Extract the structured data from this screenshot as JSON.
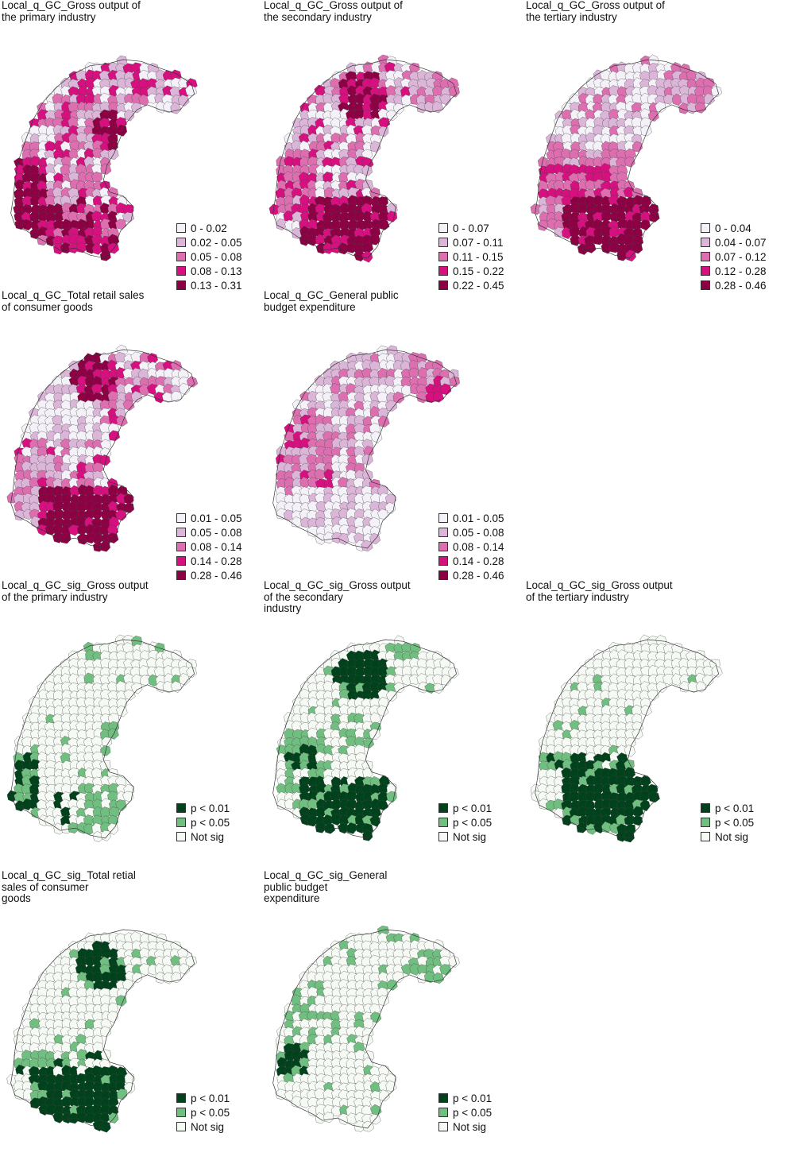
{
  "panels": [
    {
      "id": "primary",
      "title": "Local_q_GC_Gross output of\nthe primary industry",
      "legend_type": "q",
      "legend": [
        "0 - 0.02",
        "0.02 - 0.05",
        "0.05 - 0.08",
        "0.08 - 0.13",
        "0.13 - 0.31"
      ]
    },
    {
      "id": "secondary",
      "title": "Local_q_GC_Gross output of\nthe secondary industry",
      "legend_type": "q",
      "legend": [
        "0 - 0.07",
        "0.07 - 0.11",
        "0.11 - 0.15",
        "0.15 - 0.22",
        "0.22 - 0.45"
      ]
    },
    {
      "id": "tertiary",
      "title": "Local_q_GC_Gross output of\nthe tertiary industry",
      "legend_type": "q",
      "legend": [
        "0 - 0.04",
        "0.04 - 0.07",
        "0.07 - 0.12",
        "0.12 - 0.28",
        "0.28 - 0.46"
      ]
    },
    {
      "id": "retail",
      "title": "Local_q_GC_Total retail sales\nof consumer goods",
      "legend_type": "q",
      "legend": [
        "0.01 - 0.05",
        "0.05 - 0.08",
        "0.08 - 0.14",
        "0.14 - 0.28",
        "0.28 - 0.46"
      ]
    },
    {
      "id": "budget",
      "title": "Local_q_GC_General public\nbudget expenditure",
      "legend_type": "q",
      "legend": [
        "0.01 - 0.05",
        "0.05 - 0.08",
        "0.08 - 0.14",
        "0.14 - 0.28",
        "0.28 - 0.46"
      ]
    },
    {
      "id": "sig-primary",
      "title": "Local_q_GC_sig_Gross output\nof the primary industry",
      "legend_type": "sig",
      "legend": [
        "p < 0.01",
        "p < 0.05",
        "Not sig"
      ]
    },
    {
      "id": "sig-secondary",
      "title": "Local_q_GC_sig_Gross output\nof the secondary\nindustry",
      "legend_type": "sig",
      "legend": [
        "p < 0.01",
        "p < 0.05",
        "Not sig"
      ]
    },
    {
      "id": "sig-tertiary",
      "title": "Local_q_GC_sig_Gross output\nof the tertiary industry",
      "legend_type": "sig",
      "legend": [
        "p < 0.01",
        "p < 0.05",
        "Not sig"
      ]
    },
    {
      "id": "sig-retail",
      "title": "Local_q_GC_sig_Total retial\nsales of consumer\ngoods",
      "legend_type": "sig",
      "legend": [
        "p < 0.01",
        "p < 0.05",
        "Not sig"
      ]
    },
    {
      "id": "sig-budget",
      "title": "Local_q_GC_sig_General\npublic budget\nexpenditure",
      "legend_type": "sig",
      "legend": [
        "p < 0.01",
        "p < 0.05",
        "Not sig"
      ]
    }
  ],
  "colors": {
    "q_classes": [
      "#f4f1f8",
      "#dcb6d9",
      "#dd6fb0",
      "#d6107f",
      "#8e0044"
    ],
    "sig_classes": [
      "#00421c",
      "#71bf80",
      "#f6faf4"
    ]
  }
}
